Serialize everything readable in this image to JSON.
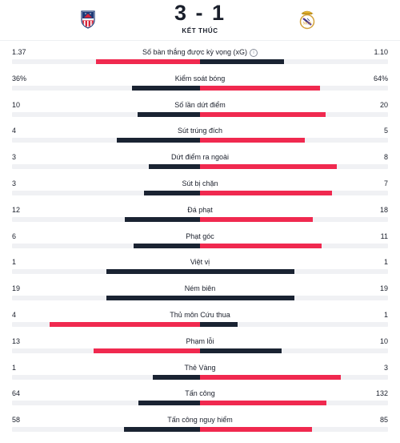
{
  "match": {
    "score": "3 - 1",
    "status": "KẾT THÚC"
  },
  "colors": {
    "win": "#f0294f",
    "lose": "#1a2332",
    "track": "#f0f1f4"
  },
  "icons": {
    "home_crest": "atletico-madrid-crest-icon",
    "away_crest": "real-madrid-crest-icon",
    "info": "info-icon"
  },
  "stats": [
    {
      "label": "Số bàn thắng được kỳ vọng (xG)",
      "home": "1.37",
      "away": "1.10",
      "home_val": 1.37,
      "away_val": 1.1,
      "info": true
    },
    {
      "label": "Kiểm soát bóng",
      "home": "36%",
      "away": "64%",
      "home_val": 36,
      "away_val": 64
    },
    {
      "label": "Số lần dứt điểm",
      "home": "10",
      "away": "20",
      "home_val": 10,
      "away_val": 20
    },
    {
      "label": "Sút trúng đích",
      "home": "4",
      "away": "5",
      "home_val": 4,
      "away_val": 5
    },
    {
      "label": "Dứt điểm ra ngoài",
      "home": "3",
      "away": "8",
      "home_val": 3,
      "away_val": 8
    },
    {
      "label": "Sút bị chặn",
      "home": "3",
      "away": "7",
      "home_val": 3,
      "away_val": 7
    },
    {
      "label": "Đá phạt",
      "home": "12",
      "away": "18",
      "home_val": 12,
      "away_val": 18
    },
    {
      "label": "Phạt góc",
      "home": "6",
      "away": "11",
      "home_val": 6,
      "away_val": 11
    },
    {
      "label": "Việt vị",
      "home": "1",
      "away": "1",
      "home_val": 1,
      "away_val": 1
    },
    {
      "label": "Ném biên",
      "home": "19",
      "away": "19",
      "home_val": 19,
      "away_val": 19
    },
    {
      "label": "Thủ môn Cứu thua",
      "home": "4",
      "away": "1",
      "home_val": 4,
      "away_val": 1
    },
    {
      "label": "Phạm lỗi",
      "home": "13",
      "away": "10",
      "home_val": 13,
      "away_val": 10
    },
    {
      "label": "Thẻ Vàng",
      "home": "1",
      "away": "3",
      "home_val": 1,
      "away_val": 3
    },
    {
      "label": "Tấn công",
      "home": "64",
      "away": "132",
      "home_val": 64,
      "away_val": 132
    },
    {
      "label": "Tấn công nguy hiểm",
      "home": "58",
      "away": "85",
      "home_val": 58,
      "away_val": 85
    }
  ]
}
